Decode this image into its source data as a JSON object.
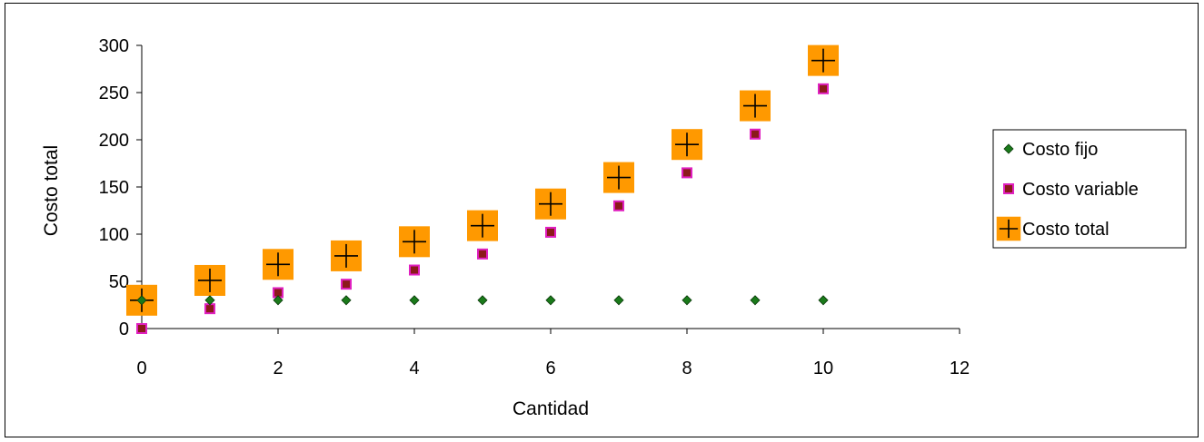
{
  "chart_data": {
    "type": "scatter",
    "title": "",
    "xlabel": "Cantidad",
    "ylabel": "Costo total",
    "xlim": [
      0,
      12
    ],
    "ylim": [
      0,
      300
    ],
    "x_ticks": [
      "0",
      "2",
      "4",
      "6",
      "8",
      "10",
      "12"
    ],
    "y_ticks": [
      "0",
      "50",
      "100",
      "150",
      "200",
      "250",
      "300"
    ],
    "grid": false,
    "legend_position": "right",
    "series": [
      {
        "name": "Costo fijo",
        "marker": "diamond",
        "color": "#1a7a1a",
        "x": [
          0,
          1,
          2,
          3,
          4,
          5,
          6,
          7,
          8,
          9,
          10
        ],
        "y": [
          30,
          30,
          30,
          30,
          30,
          30,
          30,
          30,
          30,
          30,
          30
        ]
      },
      {
        "name": "Costo variable",
        "marker": "square",
        "color": "#8b1a1a",
        "edge_color": "#e020c0",
        "x": [
          0,
          1,
          2,
          3,
          4,
          5,
          6,
          7,
          8,
          9,
          10
        ],
        "y": [
          0,
          21,
          38,
          47,
          62,
          79,
          102,
          130,
          165,
          206,
          254
        ]
      },
      {
        "name": "Costo total",
        "marker": "plus",
        "color": "#ff9900",
        "x": [
          0,
          1,
          2,
          3,
          4,
          5,
          6,
          7,
          8,
          9,
          10
        ],
        "y": [
          30,
          51,
          68,
          77,
          92,
          109,
          132,
          160,
          195,
          236,
          284
        ]
      }
    ]
  }
}
